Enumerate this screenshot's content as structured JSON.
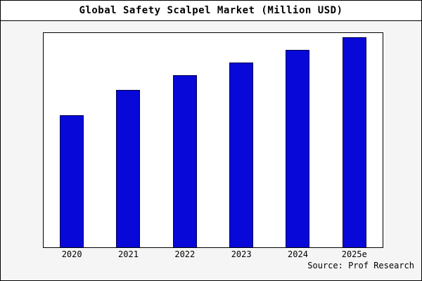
{
  "title": "Global Safety Scalpel Market (Million USD)",
  "source": "Source: Prof Research",
  "colors": {
    "bar_fill": "#0808d8",
    "bar_edge": "#000050",
    "figure_bg": "#f5f5f5",
    "plot_bg": "#ffffff",
    "border": "#000000"
  },
  "chart_data": {
    "type": "bar",
    "title": "Global Safety Scalpel Market (Million USD)",
    "categories": [
      "2020",
      "2021",
      "2022",
      "2023",
      "2024",
      "2025e"
    ],
    "values": [
      63,
      75,
      82,
      88,
      94,
      100
    ],
    "xlabel": "",
    "ylabel": "",
    "ylim": [
      0,
      102
    ],
    "grid": false,
    "legend": "none",
    "note_units": "Million USD (values estimated from bar heights; no y-axis ticks shown)"
  }
}
